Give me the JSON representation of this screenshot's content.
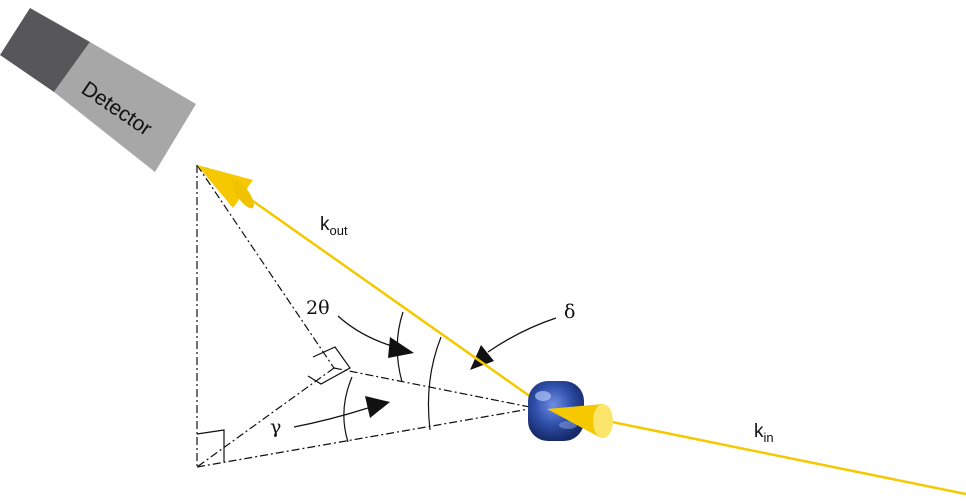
{
  "diagram": {
    "detector_label": "Detector",
    "k_out": {
      "base": "k",
      "sub": "out"
    },
    "k_in": {
      "base": "k",
      "sub": "in"
    },
    "two_theta": "2θ",
    "delta": "δ",
    "gamma": "γ"
  },
  "colors": {
    "beam": "#f5c800",
    "beam_light": "#fbe56a",
    "detector_face": "#a7a7a7",
    "detector_back": "#575759",
    "crystal": "#2f4faa",
    "line": "#111111"
  }
}
